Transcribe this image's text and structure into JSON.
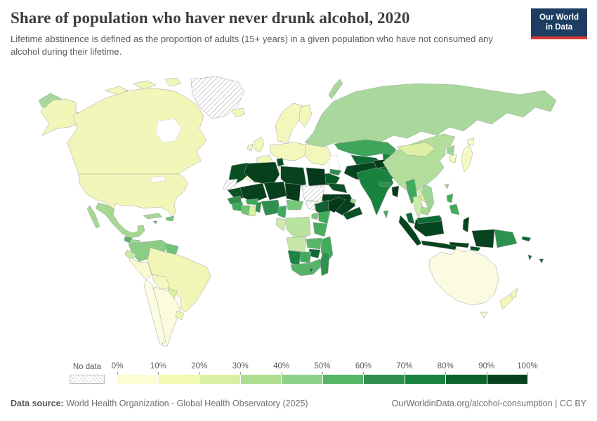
{
  "header": {
    "title": "Share of population who haver never drunk alcohol, 2020",
    "subtitle": "Lifetime abstinence is defined as the proportion of adults (15+ years) in a given population who have not consumed any alcohol during their lifetime."
  },
  "logo": {
    "line1": "Our World",
    "line2": "in Data",
    "bg": "#1d3d63",
    "accent": "#d73b2f"
  },
  "legend": {
    "no_data_label": "No data",
    "tick_labels": [
      "0%",
      "10%",
      "20%",
      "30%",
      "40%",
      "50%",
      "60%",
      "70%",
      "80%",
      "90%",
      "100%"
    ],
    "bin_colors": [
      "#fcfdd1",
      "#f2f9b1",
      "#d9f0a3",
      "#addd8e",
      "#8ed18a",
      "#55b567",
      "#2f8f4f",
      "#17833f",
      "#0b632d",
      "#07431e"
    ]
  },
  "footer": {
    "source_label": "Data source:",
    "source_text": " World Health Organization - Global Health Observatory (2025)",
    "right_text": "OurWorldinData.org/alcohol-consumption | CC BY"
  },
  "map": {
    "ocean": "#ffffff",
    "border": "#a0a0a0",
    "regions": {
      "chukotka": {
        "color": "#a8d89b"
      },
      "alaska": {
        "color": "#f2f6b8"
      },
      "canada": {
        "color": "#f2f6b8"
      },
      "arctic_islands": {
        "color": "#f2f6b8"
      },
      "greenland": {
        "color": "hatch"
      },
      "iceland": {
        "color": "#f3f7bc"
      },
      "usa": {
        "color": "#f2f6b8"
      },
      "baja": {
        "color": "#a6d892"
      },
      "mexico": {
        "color": "#a6d892"
      },
      "guatemala": {
        "color": "#55b266"
      },
      "honduras_nicaragua": {
        "color": "#9ed597"
      },
      "costa_panama": {
        "color": "#78c679"
      },
      "cuba": {
        "color": "#a6d892"
      },
      "hispaniola": {
        "color": "#78c679"
      },
      "jamaica": {
        "color": "#55b266"
      },
      "colombia": {
        "color": "#8ccd85"
      },
      "venezuela": {
        "color": "#8ccd85"
      },
      "guyanas": {
        "color": "#6fc276"
      },
      "ecuador": {
        "color": "#c9e9a8"
      },
      "peru": {
        "color": "#f9fad2"
      },
      "brazil": {
        "color": "#f0f6b5"
      },
      "bolivia": {
        "color": "#f3f8c0"
      },
      "paraguay": {
        "color": "#d9f0a3"
      },
      "chile": {
        "color": "#fcfce3"
      },
      "argentina": {
        "color": "#fbfbdd"
      },
      "uruguay": {
        "color": "#f2f6b8"
      },
      "scandinavia": {
        "color": "#f3f7bc"
      },
      "finland": {
        "color": "#f3f7bc"
      },
      "uk": {
        "color": "#f3f7bc"
      },
      "ireland": {
        "color": "#f3f7bc"
      },
      "iberia": {
        "color": "#f6f9c8"
      },
      "france": {
        "color": "#f3f7bc"
      },
      "central_europe": {
        "color": "#f3f7bc"
      },
      "italy": {
        "color": "#f3f7bc"
      },
      "balkans": {
        "color": "#f3f7bc"
      },
      "bosnia": {
        "color": "#6fc276"
      },
      "albania_mk": {
        "color": "#9ed597"
      },
      "east_europe": {
        "color": "#f3f7bc"
      },
      "russia": {
        "color": "#a8d89b"
      },
      "novaya_zemlya": {
        "color": "#a8d89b"
      },
      "kazakhstan": {
        "color": "#3fa55b"
      },
      "uzbek_turkmen": {
        "color": "#0e6b33"
      },
      "kyrgyz_tajik": {
        "color": "#17833f"
      },
      "caucasus": {
        "color": "#2f8f4f"
      },
      "turkey": {
        "color": "#0a5c2a"
      },
      "syria_iraq": {
        "color": "#0b5127"
      },
      "levant": {
        "color": "#9ed597"
      },
      "iran": {
        "color": "#07431f"
      },
      "afghanistan": {
        "color": "#05391b"
      },
      "pakistan": {
        "color": "#0e6b33"
      },
      "saudi": {
        "color": "#06401d"
      },
      "yemen_oman": {
        "color": "#0b5127"
      },
      "gulf_states": {
        "color": "#a6d892"
      },
      "morocco": {
        "color": "#0a4f24"
      },
      "wsahara": {
        "color": "hatch"
      },
      "algeria": {
        "color": "#06401d"
      },
      "tunisia": {
        "color": "#0b5127"
      },
      "libya": {
        "color": "#07431f"
      },
      "egypt": {
        "color": "#053a1b"
      },
      "mauritania": {
        "color": "#0b5226"
      },
      "mali": {
        "color": "#06401d"
      },
      "niger": {
        "color": "#083f1e"
      },
      "chad": {
        "color": "#053a1b"
      },
      "sudan": {
        "color": "hatch"
      },
      "ssudan": {
        "color": "hatch"
      },
      "ethiopia": {
        "color": "#116431"
      },
      "somalia": {
        "color": "#05391b"
      },
      "senegal": {
        "color": "#2f8f4f"
      },
      "guinea": {
        "color": "#41ab5d"
      },
      "civ": {
        "color": "#6fc276"
      },
      "ghana": {
        "color": "#d9f0a3"
      },
      "burkina": {
        "color": "#41ab5d"
      },
      "togo_benin": {
        "color": "#2f8f4f"
      },
      "nigeria": {
        "color": "#2f8f4f"
      },
      "cameroon": {
        "color": "#41ab5d"
      },
      "car": {
        "color": "#78c679"
      },
      "gabon_congo": {
        "color": "#cdeba9"
      },
      "drc": {
        "color": "#b9e3a1"
      },
      "uganda": {
        "color": "#78c679"
      },
      "kenya": {
        "color": "#41ab5d"
      },
      "tanzania": {
        "color": "#48ad5f"
      },
      "angola": {
        "color": "#c6e8a6"
      },
      "zambia": {
        "color": "#5ab569"
      },
      "mozambique": {
        "color": "#41ab5d"
      },
      "zimbabwe": {
        "color": "#0f6b33"
      },
      "botswana": {
        "color": "#41ab5d"
      },
      "namibia": {
        "color": "#1d8443"
      },
      "south_africa": {
        "color": "#56b368"
      },
      "lesotho": {
        "color": "#0f6b33"
      },
      "madagascar": {
        "color": "#2d9150"
      },
      "india": {
        "color": "#17833f"
      },
      "nepal": {
        "color": "#2f8f4f"
      },
      "bangladesh": {
        "color": "#05391b"
      },
      "srilanka": {
        "color": "#41ab5d"
      },
      "china": {
        "color": "#b2dd9b"
      },
      "mongolia": {
        "color": "#dff0a6"
      },
      "nkorea": {
        "color": "#9ed597"
      },
      "skorea": {
        "color": "#f3f8c0"
      },
      "japan": {
        "color": "#f6f9c6"
      },
      "hokkaido": {
        "color": "#f6f9c6"
      },
      "taiwan": {
        "color": "#a6d892"
      },
      "myanmar": {
        "color": "#41ab5d"
      },
      "thailand": {
        "color": "#cdeba9"
      },
      "laos": {
        "color": "#d9f0a3"
      },
      "vietnam": {
        "color": "#9ed597"
      },
      "cambodia": {
        "color": "#a6d892"
      },
      "malaysia_pen": {
        "color": "#0d6b33"
      },
      "malaysia_borneo": {
        "color": "#0d6b33"
      },
      "sumatra": {
        "color": "#06441f"
      },
      "java": {
        "color": "#06441f"
      },
      "kalimantan": {
        "color": "#06441f"
      },
      "sulawesi": {
        "color": "#06441f"
      },
      "lesser_sunda": {
        "color": "#06441f"
      },
      "timor": {
        "color": "#0b5127"
      },
      "philippines_n": {
        "color": "#41ab5d"
      },
      "philippines_s": {
        "color": "#41ab5d"
      },
      "west_papua": {
        "color": "#06441f"
      },
      "png": {
        "color": "#2d9150"
      },
      "solomon": {
        "color": "#0f6b33"
      },
      "vanuatu": {
        "color": "#0f6b33"
      },
      "fiji": {
        "color": "#0f6b33"
      },
      "australia": {
        "color": "#fbfbe2"
      },
      "tasmania": {
        "color": "#f6f9c6"
      },
      "nz_north": {
        "color": "#f2f6b8"
      },
      "nz_south": {
        "color": "#f2f6b8"
      }
    }
  }
}
